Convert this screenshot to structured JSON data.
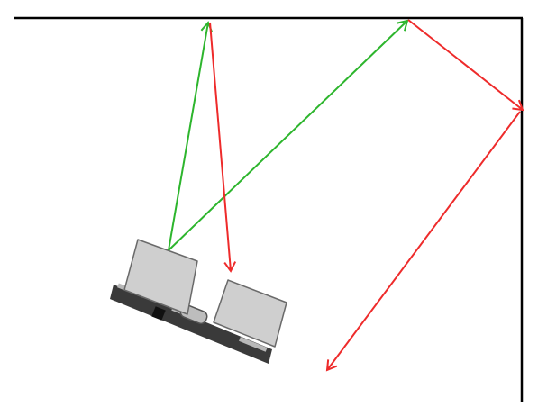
{
  "colors": {
    "background": "#ffffff",
    "wall": "#000000",
    "emitted_ray": "#2db52d",
    "reflected_ray": "#ee2b2b",
    "transducer_fill": "#cfcfcf",
    "transducer_stroke": "#6a6a6a",
    "pcb_fill": "#3a3a3a",
    "pin_fill": "#b8b8b8",
    "crystal_fill": "#bdbdbd"
  },
  "elements": {
    "walls": "corner-walls",
    "sensor": "ultrasonic-sensor-icon",
    "emitted_rays": "green-emitted-arrows",
    "reflected_rays": "red-reflected-arrows"
  }
}
